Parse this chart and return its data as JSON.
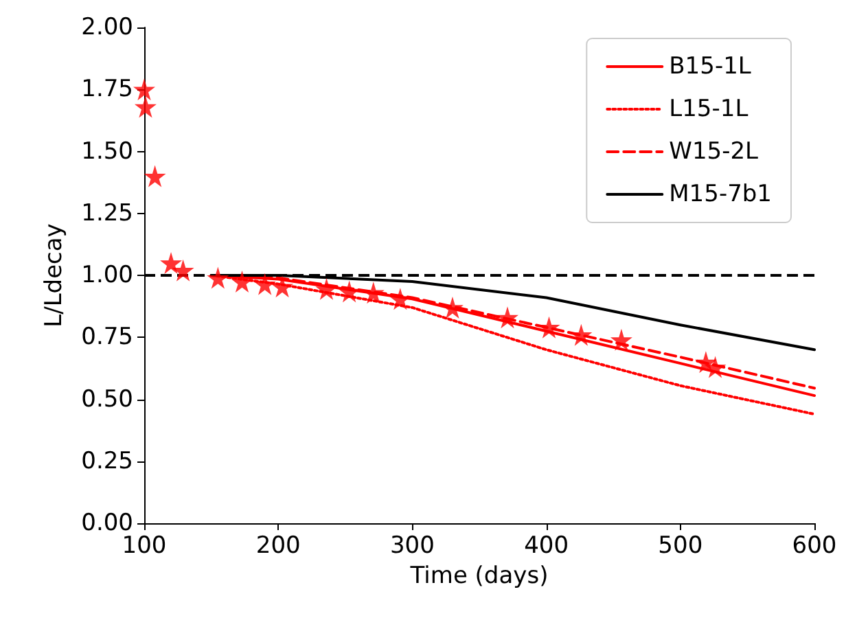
{
  "chart_data": {
    "type": "line",
    "xlabel": "Time (days)",
    "ylabel": "L/Ldecay",
    "xlim": [
      100,
      600
    ],
    "ylim": [
      0,
      2
    ],
    "xticks": [
      100,
      200,
      300,
      400,
      500,
      600
    ],
    "yticks": [
      {
        "value": 0,
        "label": "0.00"
      },
      {
        "value": 0.25,
        "label": "0.25"
      },
      {
        "value": 0.5,
        "label": "0.50"
      },
      {
        "value": 0.75,
        "label": "0.75"
      },
      {
        "value": 1,
        "label": "1.00"
      },
      {
        "value": 1.25,
        "label": "1.25"
      },
      {
        "value": 1.5,
        "label": "1.50"
      },
      {
        "value": 1.75,
        "label": "1.75"
      },
      {
        "value": 2,
        "label": "2.00"
      }
    ],
    "grid": false,
    "legend": "top right",
    "ref_lines": [
      {
        "axis": "y",
        "value": 1,
        "color": "#000000",
        "line_style": "dashed"
      }
    ],
    "series": [
      {
        "name": "B15-1L",
        "color": "#ff0000",
        "line_style": "solid",
        "marker": "none",
        "x": [
          150,
          200,
          300,
          400,
          500,
          600
        ],
        "values": [
          1.0,
          0.985,
          0.905,
          0.775,
          0.645,
          0.515
        ]
      },
      {
        "name": "L15-1L",
        "color": "#ff0000",
        "line_style": "dotted",
        "marker": "none",
        "x": [
          150,
          200,
          300,
          400,
          500,
          600
        ],
        "values": [
          1.0,
          0.965,
          0.87,
          0.7,
          0.555,
          0.44
        ]
      },
      {
        "name": "W15-2L",
        "color": "#ff0000",
        "line_style": "dashed",
        "marker": "none",
        "x": [
          150,
          200,
          300,
          400,
          500,
          600
        ],
        "values": [
          1.0,
          0.99,
          0.91,
          0.79,
          0.67,
          0.545
        ]
      },
      {
        "name": "M15-7b1",
        "color": "#000000",
        "line_style": "solid",
        "marker": "none",
        "x": [
          150,
          200,
          300,
          400,
          500,
          600
        ],
        "values": [
          1.0,
          1.0,
          0.975,
          0.91,
          0.8,
          0.7
        ]
      },
      {
        "type": "scatter",
        "color": "#ff0000",
        "marker": "star",
        "x": [
          100,
          101,
          108,
          120,
          129,
          155,
          173,
          190,
          203,
          236,
          253,
          271,
          291,
          330,
          371,
          402,
          426,
          456,
          519,
          526
        ],
        "values": [
          1.75,
          1.68,
          1.4,
          1.05,
          1.02,
          0.99,
          0.975,
          0.965,
          0.955,
          0.945,
          0.935,
          0.93,
          0.905,
          0.87,
          0.83,
          0.79,
          0.76,
          0.74,
          0.65,
          0.63
        ]
      }
    ]
  }
}
